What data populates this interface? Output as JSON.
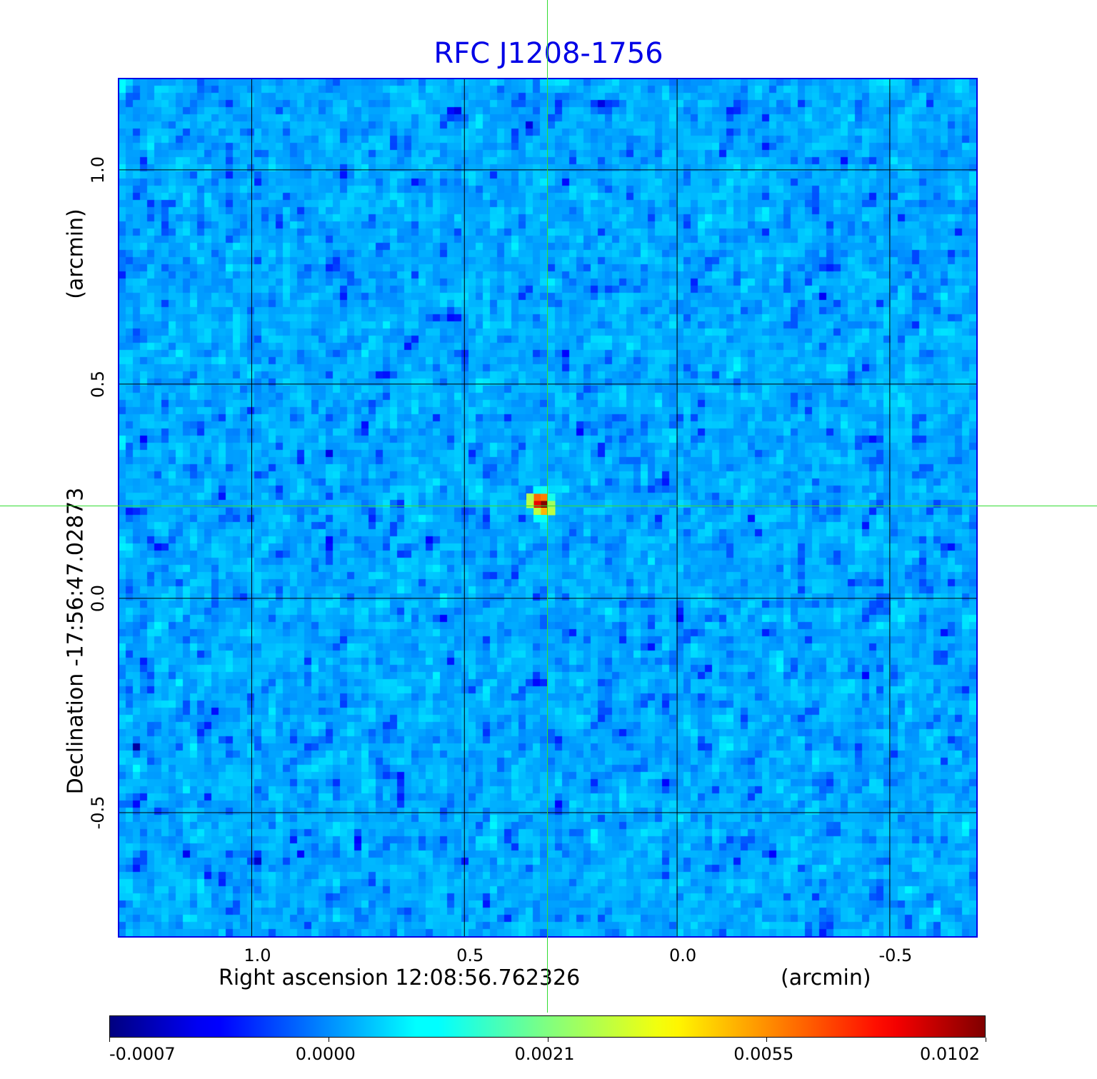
{
  "title": "RFC J1208-1756",
  "chart_data": {
    "type": "heatmap",
    "title": "RFC J1208-1756",
    "xlabel": "Right ascension  12:08:56.762326",
    "xunit": "(arcmin)",
    "ylabel": "Declination  -17:56:47.02873",
    "yunit": "(arcmin)",
    "xlim": [
      1.313,
      -0.705
    ],
    "ylim": [
      -0.79,
      1.213
    ],
    "xticks": [
      {
        "value": 1.0,
        "label": "1.0"
      },
      {
        "value": 0.5,
        "label": "0.5"
      },
      {
        "value": 0.0,
        "label": "0.0"
      },
      {
        "value": -0.5,
        "label": "-0.5"
      }
    ],
    "yticks": [
      {
        "value": 1.0,
        "label": "1.0"
      },
      {
        "value": 0.5,
        "label": "0.5"
      },
      {
        "value": 0.0,
        "label": "0.0"
      },
      {
        "value": -0.5,
        "label": "-0.5"
      }
    ],
    "grid": true,
    "grid_color": "#000000",
    "frame_color": "#0000e6",
    "crosshair": {
      "ra": 0.305,
      "dec": 0.217,
      "color": "#33dd33"
    },
    "pixels_per_side": 120,
    "noise": {
      "mean": 0.0002,
      "sigma": 0.00022,
      "seed": 7
    },
    "source_pixels": [
      {
        "dx": 0,
        "dy": 0,
        "value": 0.0102
      },
      {
        "dx": -1,
        "dy": 0,
        "value": 0.0085
      },
      {
        "dx": -1,
        "dy": -1,
        "value": 0.0062
      },
      {
        "dx": 0,
        "dy": -1,
        "value": 0.0058
      },
      {
        "dx": 0,
        "dy": 1,
        "value": 0.005
      },
      {
        "dx": -1,
        "dy": 1,
        "value": 0.003
      },
      {
        "dx": 1,
        "dy": 1,
        "value": 0.003
      },
      {
        "dx": -2,
        "dy": 0,
        "value": 0.003
      },
      {
        "dx": -2,
        "dy": -1,
        "value": 0.0028
      },
      {
        "dx": 1,
        "dy": 0,
        "value": 0.0026
      },
      {
        "dx": 1,
        "dy": -1,
        "value": 0.0012
      },
      {
        "dx": 0,
        "dy": -2,
        "value": 0.0012
      },
      {
        "dx": -1,
        "dy": -2,
        "value": 0.001
      },
      {
        "dx": 0,
        "dy": 2,
        "value": 0.0011
      },
      {
        "dx": -1,
        "dy": 2,
        "value": 0.0009
      }
    ],
    "colorbar": {
      "colormap": "jet",
      "ticks": [
        {
          "value": -0.0007,
          "label": "-0.0007"
        },
        {
          "value": 0.0,
          "label": "0.0000"
        },
        {
          "value": 0.0021,
          "label": "0.0021"
        },
        {
          "value": 0.0055,
          "label": "0.0055"
        },
        {
          "value": 0.0102,
          "label": "0.0102"
        }
      ]
    }
  }
}
